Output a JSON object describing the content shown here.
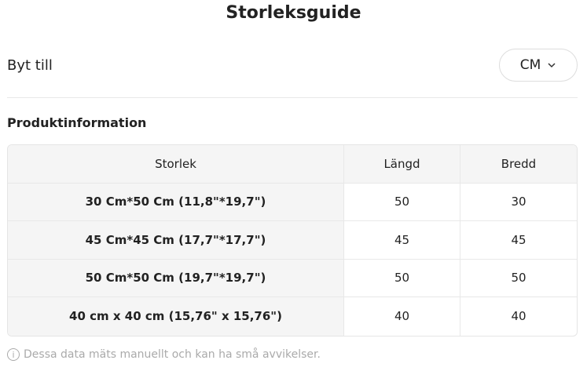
{
  "title": "Storleksguide",
  "switch": {
    "label": "Byt till",
    "unit": "CM"
  },
  "section_title": "Produktinformation",
  "table": {
    "headers": [
      "Storlek",
      "Längd",
      "Bredd"
    ],
    "rows": [
      [
        "30 Cm*50 Cm (11,8\"*19,7\")",
        "50",
        "30"
      ],
      [
        "45 Cm*45 Cm (17,7\"*17,7\")",
        "45",
        "45"
      ],
      [
        "50 Cm*50 Cm (19,7\"*19,7\")",
        "50",
        "50"
      ],
      [
        "40 cm x 40 cm (15,76\" x 15,76\")",
        "40",
        "40"
      ]
    ]
  },
  "note": "Dessa data mäts manuellt och kan ha små avvikelser."
}
